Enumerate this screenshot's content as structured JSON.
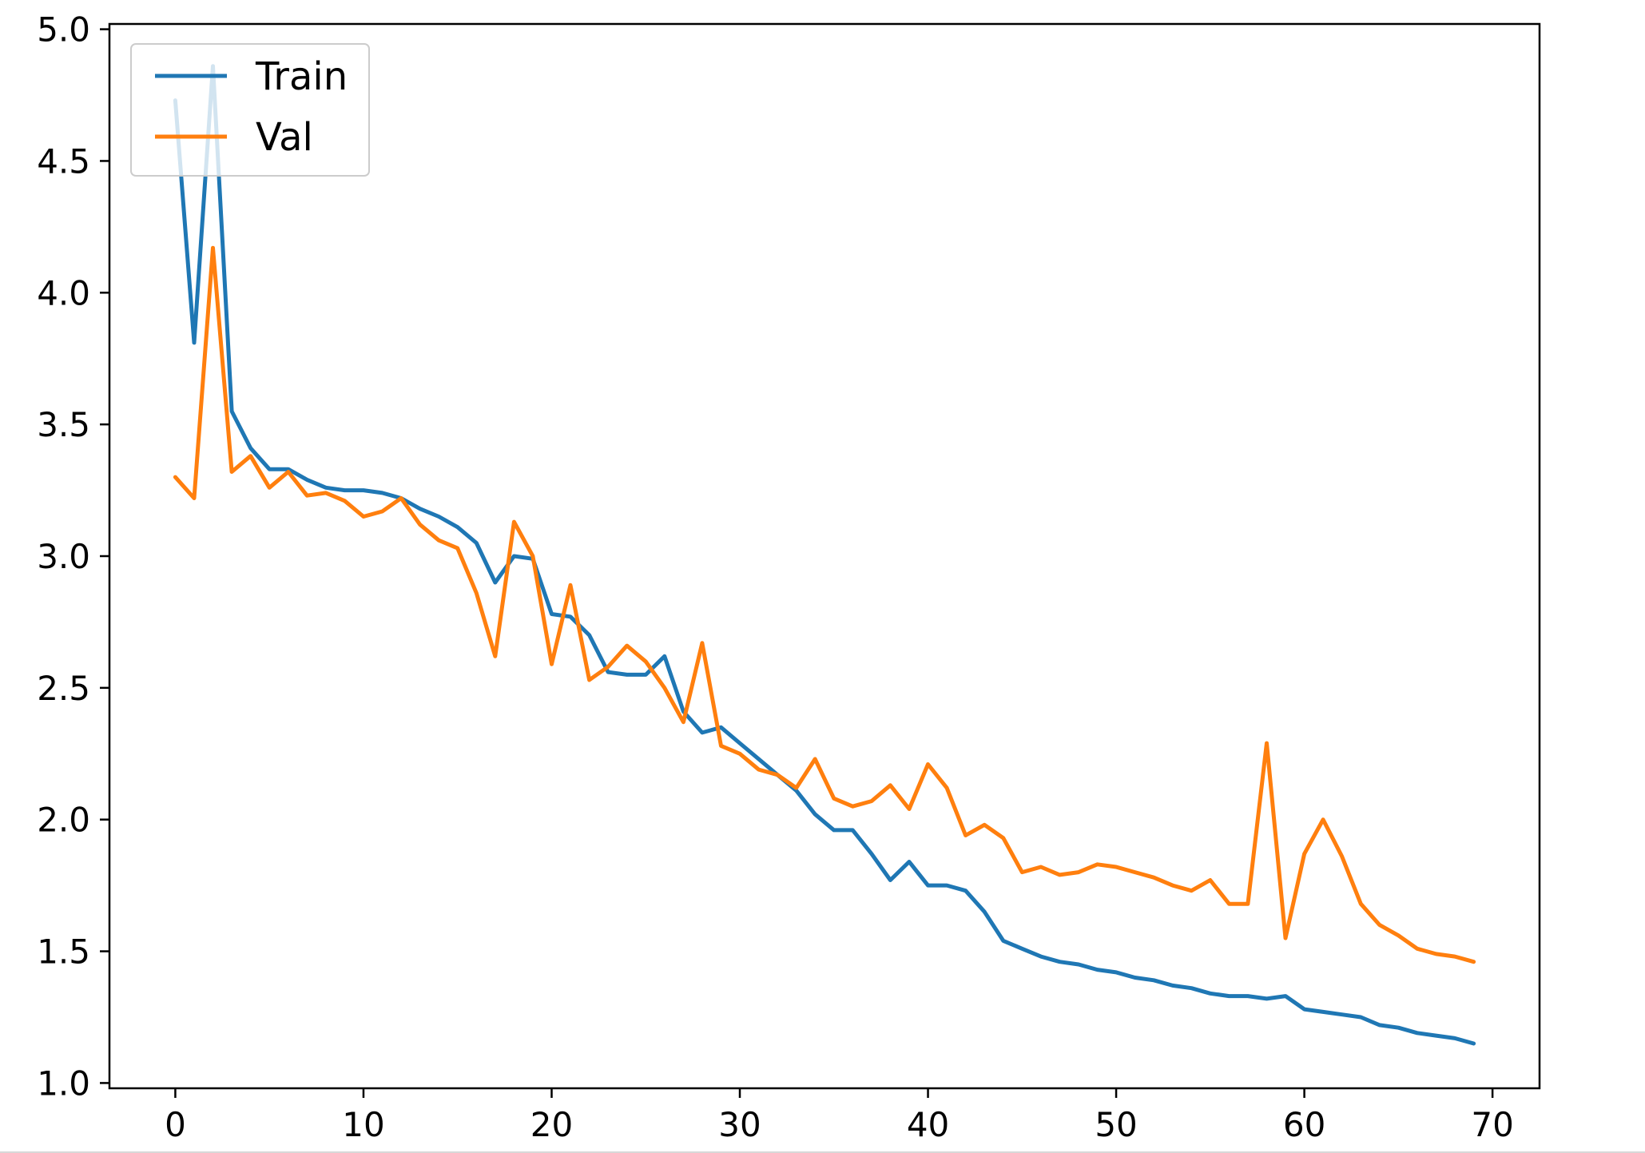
{
  "chart_data": {
    "type": "line",
    "title": "",
    "xlabel": "",
    "ylabel": "",
    "xlim": [
      -3.5,
      72.5
    ],
    "ylim": [
      0.98,
      5.02
    ],
    "x_ticks": [
      0,
      10,
      20,
      30,
      40,
      50,
      60,
      70
    ],
    "x_tick_labels": [
      "0",
      "10",
      "20",
      "30",
      "40",
      "50",
      "60",
      "70"
    ],
    "y_ticks": [
      1.0,
      1.5,
      2.0,
      2.5,
      3.0,
      3.5,
      4.0,
      4.5,
      5.0
    ],
    "y_tick_labels": [
      "1.0",
      "1.5",
      "2.0",
      "2.5",
      "3.0",
      "3.5",
      "4.0",
      "4.5",
      "5.0"
    ],
    "grid": false,
    "legend_position": "upper-left",
    "x": [
      0,
      1,
      2,
      3,
      4,
      5,
      6,
      7,
      8,
      9,
      10,
      11,
      12,
      13,
      14,
      15,
      16,
      17,
      18,
      19,
      20,
      21,
      22,
      23,
      24,
      25,
      26,
      27,
      28,
      29,
      30,
      31,
      32,
      33,
      34,
      35,
      36,
      37,
      38,
      39,
      40,
      41,
      42,
      43,
      44,
      45,
      46,
      47,
      48,
      49,
      50,
      51,
      52,
      53,
      54,
      55,
      56,
      57,
      58,
      59,
      60,
      61,
      62,
      63,
      64,
      65,
      66,
      67,
      68,
      69
    ],
    "series": [
      {
        "name": "Train",
        "color": "#1f77b4",
        "values": [
          4.73,
          3.81,
          4.86,
          3.55,
          3.41,
          3.33,
          3.33,
          3.29,
          3.26,
          3.25,
          3.25,
          3.24,
          3.22,
          3.18,
          3.15,
          3.11,
          3.05,
          2.9,
          3.0,
          2.99,
          2.78,
          2.77,
          2.7,
          2.56,
          2.55,
          2.55,
          2.62,
          2.41,
          2.33,
          2.35,
          2.29,
          2.23,
          2.17,
          2.11,
          2.02,
          1.96,
          1.96,
          1.87,
          1.77,
          1.84,
          1.75,
          1.75,
          1.73,
          1.65,
          1.54,
          1.51,
          1.48,
          1.46,
          1.45,
          1.43,
          1.42,
          1.4,
          1.39,
          1.37,
          1.36,
          1.34,
          1.33,
          1.33,
          1.32,
          1.33,
          1.28,
          1.27,
          1.26,
          1.25,
          1.22,
          1.21,
          1.19,
          1.18,
          1.17,
          1.15
        ]
      },
      {
        "name": "Val",
        "color": "#ff7f0e",
        "values": [
          3.3,
          3.22,
          4.17,
          3.32,
          3.38,
          3.26,
          3.32,
          3.23,
          3.24,
          3.21,
          3.15,
          3.17,
          3.22,
          3.12,
          3.06,
          3.03,
          2.86,
          2.62,
          3.13,
          3.0,
          2.59,
          2.89,
          2.53,
          2.58,
          2.66,
          2.6,
          2.5,
          2.37,
          2.67,
          2.28,
          2.25,
          2.19,
          2.17,
          2.12,
          2.23,
          2.08,
          2.05,
          2.07,
          2.13,
          2.04,
          2.21,
          2.12,
          1.94,
          1.98,
          1.93,
          1.8,
          1.82,
          1.79,
          1.8,
          1.83,
          1.82,
          1.8,
          1.78,
          1.75,
          1.73,
          1.77,
          1.68,
          1.68,
          2.29,
          1.55,
          1.87,
          2.0,
          1.86,
          1.68,
          1.6,
          1.56,
          1.51,
          1.49,
          1.48,
          1.46
        ]
      }
    ]
  }
}
